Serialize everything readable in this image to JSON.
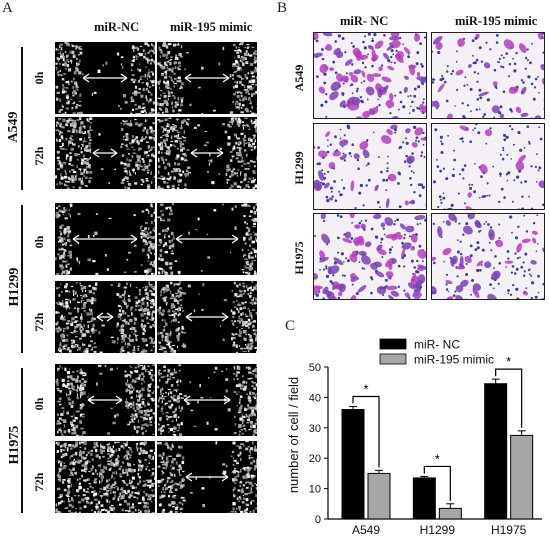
{
  "panel_a": {
    "letter": "A",
    "columns": [
      "miR-NC",
      "miR-195 mimic"
    ],
    "groups": [
      {
        "name": "A549",
        "rows": [
          "0h",
          "72h"
        ]
      },
      {
        "name": "H1299",
        "rows": [
          "0h",
          "72h"
        ]
      },
      {
        "name": "H1975",
        "rows": [
          "0h",
          "72h"
        ]
      }
    ]
  },
  "panel_b": {
    "letter": "B",
    "columns": [
      "miR- NC",
      "miR-195 mimic"
    ],
    "rows": [
      "A549",
      "H1299",
      "H1975"
    ]
  },
  "panel_c": {
    "letter": "C"
  },
  "chart_data": {
    "type": "bar",
    "categories": [
      "A549",
      "H1299",
      "H1975"
    ],
    "series": [
      {
        "name": "miR- NC",
        "values": [
          36,
          13.5,
          44.5
        ],
        "errors": [
          1,
          0.5,
          1.5
        ],
        "color": "#000000"
      },
      {
        "name": "miR-195 mimic",
        "values": [
          15,
          3.5,
          27.5
        ],
        "errors": [
          1,
          1.5,
          1.5
        ],
        "color": "#a6a6a6"
      }
    ],
    "ylabel": "number of cell / field",
    "ylim": [
      0,
      50
    ],
    "yticks": [
      "0",
      "10",
      "20",
      "30",
      "40",
      "50"
    ],
    "significance": [
      "*",
      "*",
      "*"
    ],
    "legend": "top-left",
    "grid": false
  }
}
